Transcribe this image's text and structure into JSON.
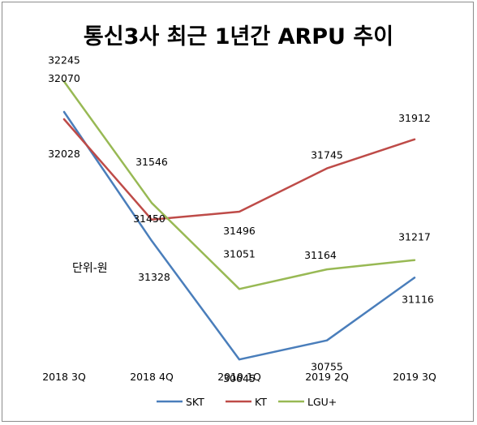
{
  "chart_data": {
    "type": "line",
    "title": "통신3사 최근 1년간 ARPU 추이",
    "unit_note": "단위-원",
    "categories": [
      "2018 3Q",
      "2018 4Q",
      "2019 1Q",
      "2019 2Q",
      "2019 3Q"
    ],
    "series": [
      {
        "name": "SKT",
        "color": "#4a7ebb",
        "values": [
          32070,
          31328,
          30645,
          30755,
          31116
        ]
      },
      {
        "name": "KT",
        "color": "#be4b48",
        "values": [
          32028,
          31450,
          31496,
          31745,
          31912
        ]
      },
      {
        "name": "LGU+",
        "color": "#98b954",
        "values": [
          32245,
          31546,
          31051,
          31164,
          31217
        ]
      }
    ],
    "grid": false,
    "legend": "bottom"
  }
}
